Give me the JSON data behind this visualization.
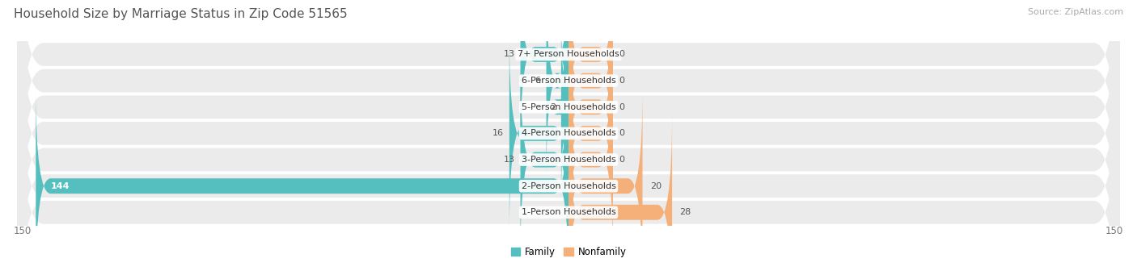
{
  "title": "Household Size by Marriage Status in Zip Code 51565",
  "source": "Source: ZipAtlas.com",
  "categories": [
    "7+ Person Households",
    "6-Person Households",
    "5-Person Households",
    "4-Person Households",
    "3-Person Households",
    "2-Person Households",
    "1-Person Households"
  ],
  "family_values": [
    13,
    6,
    2,
    16,
    13,
    144,
    0
  ],
  "nonfamily_values": [
    0,
    0,
    0,
    0,
    0,
    20,
    28
  ],
  "family_color": "#55bfc0",
  "nonfamily_color": "#f5b07a",
  "row_bg_color": "#ebebeb",
  "row_bg_color2": "#f5f5f5",
  "xlim": 150,
  "title_fontsize": 11,
  "source_fontsize": 8,
  "label_fontsize": 8,
  "value_fontsize": 8,
  "nonfamily_placeholder": 12
}
